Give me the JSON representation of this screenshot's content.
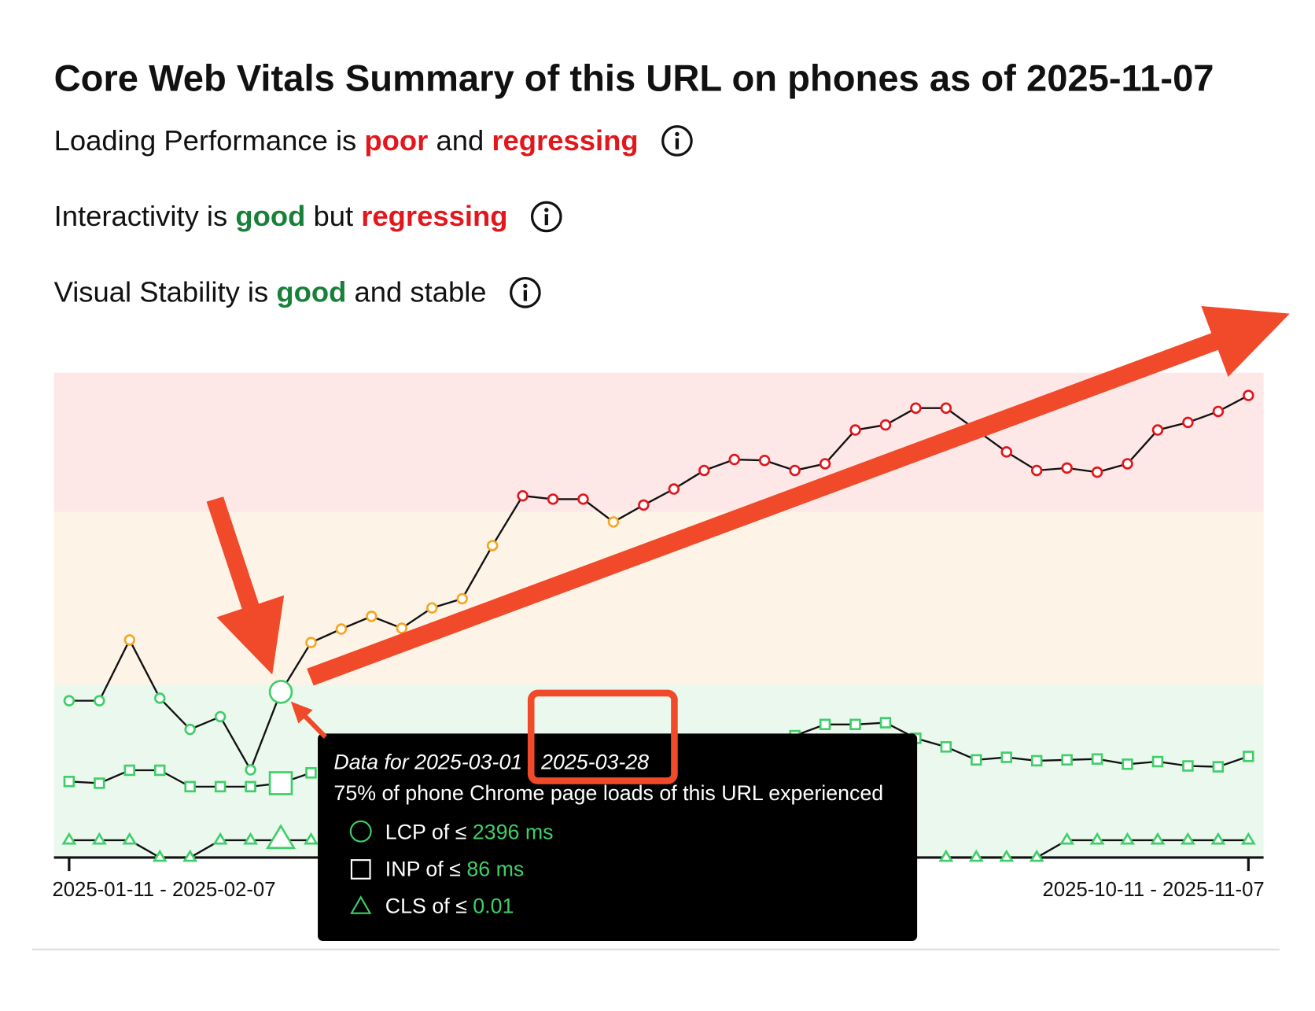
{
  "header": {
    "title": "Core Web Vitals Summary of this URL on phones as of 2025-11-07"
  },
  "status": [
    {
      "parts": [
        {
          "text": "Loading Performance is"
        },
        {
          "text": "poor",
          "color": "#e3161c"
        },
        {
          "text": "and"
        },
        {
          "text": "regressing",
          "color": "#e3161c"
        }
      ]
    },
    {
      "parts": [
        {
          "text": "Interactivity is"
        },
        {
          "text": "good",
          "color": "#188038"
        },
        {
          "text": "but"
        },
        {
          "text": "regressing",
          "color": "#e3161c"
        }
      ]
    },
    {
      "parts": [
        {
          "text": "Visual Stability is"
        },
        {
          "text": "good",
          "color": "#188038"
        },
        {
          "text": "and stable"
        }
      ]
    }
  ],
  "chart_data": {
    "type": "line",
    "categories": [
      "2025-01-11 - 2025-02-07",
      null,
      null,
      null,
      null,
      null,
      null,
      null,
      null,
      null,
      null,
      null,
      null,
      null,
      null,
      null,
      null,
      null,
      null,
      null,
      null,
      null,
      null,
      null,
      null,
      null,
      null,
      null,
      null,
      null,
      null,
      null,
      null,
      null,
      null,
      null,
      null,
      null,
      null,
      "2025-10-11 - 2025-11-07"
    ],
    "band_colors": {
      "good": "#ebf8ee",
      "needs_improvement": "#fdf3e7",
      "poor": "#fde7e7"
    },
    "marker_colors": {
      "good": "#3ecf68",
      "needs_improvement": "#f5a623",
      "poor": "#e3161c"
    },
    "line_color": "#111111",
    "series": [
      {
        "marker": "circle",
        "thresholds": [
          2500,
          4000
        ],
        "values": [
          2268,
          2268,
          2888,
          2305,
          1854,
          2037,
          1268,
          2396,
          2866,
          2983,
          3093,
          2990,
          3166,
          3246,
          3707,
          4139,
          4110,
          4110,
          3912,
          4059,
          4198,
          4359,
          4454,
          4446,
          4359,
          4417,
          4710,
          4754,
          4900,
          4900,
          4710,
          4520,
          4359,
          4380,
          4344,
          4417,
          4710,
          4776,
          4871,
          5010
        ]
      },
      {
        "marker": "square",
        "thresholds": [
          200,
          500
        ],
        "values": [
          88,
          86,
          101,
          101,
          82,
          82,
          82,
          86,
          98,
          null,
          null,
          null,
          null,
          null,
          null,
          null,
          null,
          null,
          null,
          null,
          null,
          null,
          null,
          null,
          141,
          154,
          154,
          156,
          138,
          128,
          113,
          116,
          112,
          113,
          114,
          108,
          111,
          106,
          105,
          117
        ]
      },
      {
        "marker": "triangle",
        "thresholds": [
          0.1,
          0.25
        ],
        "values": [
          0.01,
          0.01,
          0.01,
          0,
          0,
          0.01,
          0.01,
          0.01,
          0.01,
          null,
          null,
          null,
          null,
          null,
          null,
          null,
          null,
          null,
          null,
          null,
          null,
          null,
          null,
          null,
          null,
          null,
          null,
          null,
          null,
          0,
          0,
          0,
          0,
          0.01,
          0.01,
          0.01,
          0.01,
          0.01,
          0.01,
          0.01
        ]
      }
    ]
  },
  "tooltip": {
    "date_start": "Data for 2025-03-01",
    "date_end": "2025-03-28",
    "description": "75% of phone Chrome page loads of this URL experienced",
    "rows": [
      {
        "label": "LCP of ≤",
        "unit": "ms"
      },
      {
        "label": "INP of ≤",
        "unit": "ms"
      },
      {
        "label": "CLS of ≤"
      }
    ]
  }
}
